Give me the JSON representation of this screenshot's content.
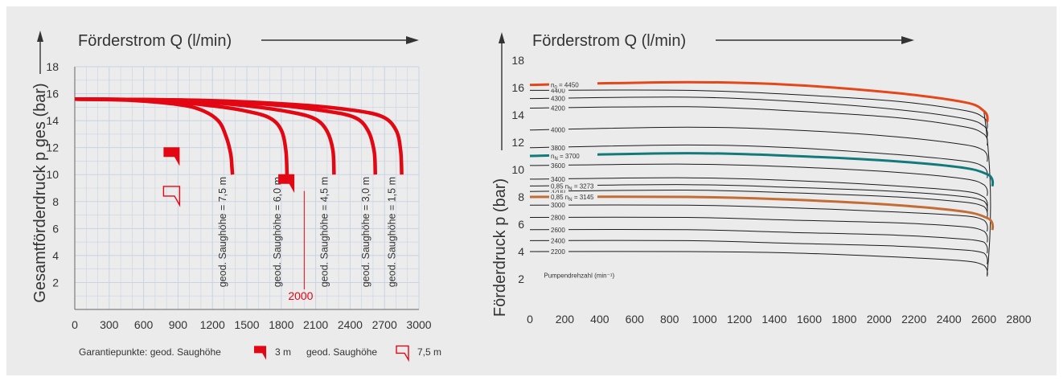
{
  "colors": {
    "background": "#ebebeb",
    "grid": "#c9d3e3",
    "red": "#e30613",
    "orange": "#e4471a",
    "teal": "#127a7a",
    "brown": "#c26d36",
    "black": "#1a1a1a"
  },
  "chart_data": [
    {
      "type": "line",
      "title": "Förderstrom Q (l/min)",
      "xlabel": "Förderstrom Q (l/min)",
      "ylabel": "Gesamtförderdruck p ges (bar)",
      "xlim": [
        0,
        3000
      ],
      "ylim": [
        0,
        18
      ],
      "x_ticks": [
        0,
        300,
        600,
        900,
        1200,
        1500,
        1800,
        2100,
        2400,
        2700,
        3000
      ],
      "y_ticks": [
        2,
        4,
        6,
        8,
        10,
        12,
        14,
        16,
        18
      ],
      "grid": true,
      "series": [
        {
          "name": "geod. Saughöhe = 7,5 m",
          "x": [
            0,
            500,
            900,
            1100,
            1250,
            1320,
            1360,
            1370,
            1375
          ],
          "y": [
            15.6,
            15.5,
            15.2,
            14.8,
            14.0,
            12.8,
            11.5,
            10.5,
            10.0
          ]
        },
        {
          "name": "geod. Saughöhe = 6,0 m",
          "x": [
            0,
            700,
            1200,
            1500,
            1700,
            1800,
            1840,
            1850
          ],
          "y": [
            15.6,
            15.5,
            15.1,
            14.7,
            14.2,
            13.3,
            11.8,
            10.0
          ]
        },
        {
          "name": "geod. Saughöhe = 4,5 m",
          "x": [
            0,
            900,
            1500,
            1900,
            2100,
            2200,
            2250,
            2260
          ],
          "y": [
            15.6,
            15.5,
            15.1,
            14.6,
            14.1,
            13.2,
            11.8,
            10.0
          ]
        },
        {
          "name": "geod. Saughöhe = 3,0 m",
          "x": [
            0,
            1000,
            1700,
            2200,
            2450,
            2560,
            2610,
            2620
          ],
          "y": [
            15.6,
            15.5,
            15.2,
            14.7,
            14.2,
            13.2,
            11.7,
            10.0
          ]
        },
        {
          "name": "geod. Saughöhe = 1,5 m",
          "x": [
            0,
            1100,
            1900,
            2400,
            2680,
            2800,
            2840,
            2850
          ],
          "y": [
            15.6,
            15.5,
            15.2,
            14.8,
            14.3,
            13.3,
            11.8,
            10.0
          ]
        }
      ],
      "guarantee_points": [
        {
          "x": 900,
          "y": 11.5,
          "style": "filled"
        },
        {
          "x": 900,
          "y": 8.6,
          "style": "outline"
        },
        {
          "x": 1900,
          "y": 9.5,
          "style": "filled"
        }
      ],
      "annotations": [
        "2000"
      ],
      "legend_text": {
        "prefix": "Garantiepunkte: geod. Saughöhe",
        "filled_value": "3 m",
        "outline_label": "geod. Saughöhe",
        "outline_value": "7,5 m"
      }
    },
    {
      "type": "line",
      "title": "Förderstrom Q (l/min)",
      "xlabel": "Förderstrom Q (l/min)",
      "ylabel": "Förderdruck p (bar)",
      "xlim": [
        0,
        2800
      ],
      "ylim": [
        0,
        18
      ],
      "x_ticks": [
        0,
        200,
        400,
        600,
        800,
        1000,
        1200,
        1400,
        1600,
        1800,
        2000,
        2200,
        2400,
        2600,
        2800
      ],
      "y_ticks": [
        2,
        4,
        6,
        8,
        10,
        12,
        14,
        16,
        18
      ],
      "grid": false,
      "speed_axis_label": "Pumpendrehzahl (min⁻¹)",
      "series": [
        {
          "name": "n0 = 4450",
          "label": "n",
          "sub": "0",
          "suffix": " = 4450",
          "x": [
            0,
            900,
            1500,
            2100,
            2500,
            2600
          ],
          "y": [
            16.2,
            16.4,
            16.2,
            15.6,
            14.9,
            14.3
          ],
          "color": "orange",
          "width": 3
        },
        {
          "name": "4400",
          "label": "4400",
          "x": [
            0,
            900,
            1500,
            2100,
            2500,
            2600
          ],
          "y": [
            15.8,
            15.8,
            15.5,
            15.0,
            14.3,
            13.8
          ],
          "color": "black",
          "width": 1
        },
        {
          "name": "4300",
          "label": "4300",
          "x": [
            0,
            900,
            1500,
            2100,
            2500,
            2600
          ],
          "y": [
            15.2,
            15.3,
            15.0,
            14.4,
            13.7,
            13.2
          ],
          "color": "black",
          "width": 1
        },
        {
          "name": "4200",
          "label": "4200",
          "x": [
            0,
            900,
            1500,
            2100,
            2500,
            2600
          ],
          "y": [
            14.5,
            14.6,
            14.3,
            13.8,
            13.1,
            12.6
          ],
          "color": "black",
          "width": 1
        },
        {
          "name": "4000",
          "label": "4000",
          "x": [
            0,
            900,
            1500,
            2100,
            2500,
            2600
          ],
          "y": [
            12.9,
            13.1,
            12.9,
            12.4,
            11.8,
            11.4
          ],
          "color": "black",
          "width": 1
        },
        {
          "name": "3800",
          "label": "3800",
          "x": [
            0,
            900,
            1500,
            2100,
            2500,
            2600
          ],
          "y": [
            11.6,
            11.8,
            11.6,
            11.1,
            10.6,
            10.2
          ],
          "color": "black",
          "width": 1
        },
        {
          "name": "nN = 3700",
          "label": "n",
          "sub": "N",
          "suffix": " = 3700",
          "x": [
            0,
            900,
            1500,
            2100,
            2500,
            2630
          ],
          "y": [
            11.0,
            11.2,
            11.0,
            10.6,
            10.1,
            9.6
          ],
          "color": "teal",
          "width": 3
        },
        {
          "name": "3600",
          "label": "3600",
          "x": [
            0,
            900,
            1500,
            2100,
            2500,
            2600
          ],
          "y": [
            10.3,
            10.4,
            10.2,
            9.8,
            9.3,
            8.9
          ],
          "color": "black",
          "width": 1
        },
        {
          "name": "3400",
          "label": "3400",
          "x": [
            0,
            900,
            1500,
            2100,
            2500,
            2600
          ],
          "y": [
            9.3,
            9.4,
            9.2,
            8.8,
            8.4,
            8.0
          ],
          "color": "black",
          "width": 1
        },
        {
          "name": "3200",
          "label": "3200",
          "x": [
            0,
            900,
            1500,
            2100,
            2500,
            2600
          ],
          "y": [
            8.4,
            8.5,
            8.3,
            8.0,
            7.6,
            7.3
          ],
          "color": "black",
          "width": 1
        },
        {
          "name": "0,85 nN = 3273",
          "label": "0,85 n",
          "sub": "N",
          "suffix": " = 3273",
          "x": [
            0,
            900,
            1500,
            2100,
            2500,
            2600
          ],
          "y": [
            8.8,
            8.9,
            8.7,
            8.4,
            8.0,
            7.7
          ],
          "color": "black",
          "width": 1
        },
        {
          "name": "0,85 nN = 3145",
          "label": "0,85 n",
          "sub": "N",
          "suffix": " = 3145",
          "x": [
            0,
            900,
            1500,
            2100,
            2500,
            2630
          ],
          "y": [
            8.0,
            8.0,
            7.8,
            7.4,
            6.9,
            6.4
          ],
          "color": "brown",
          "width": 3
        },
        {
          "name": "3000",
          "label": "3000",
          "x": [
            0,
            900,
            1500,
            2100,
            2500,
            2600
          ],
          "y": [
            7.4,
            7.4,
            7.2,
            6.9,
            6.6,
            6.3
          ],
          "color": "black",
          "width": 1
        },
        {
          "name": "2800",
          "label": "2800",
          "x": [
            0,
            900,
            1500,
            2100,
            2500,
            2600
          ],
          "y": [
            6.5,
            6.5,
            6.3,
            6.1,
            5.8,
            5.5
          ],
          "color": "black",
          "width": 1
        },
        {
          "name": "2600",
          "label": "2600",
          "x": [
            0,
            900,
            1500,
            2100,
            2500,
            2600
          ],
          "y": [
            5.6,
            5.6,
            5.4,
            5.2,
            4.9,
            4.7
          ],
          "color": "black",
          "width": 1
        },
        {
          "name": "2400",
          "label": "2400",
          "x": [
            0,
            900,
            1500,
            2100,
            2500,
            2600
          ],
          "y": [
            4.8,
            4.8,
            4.6,
            4.4,
            4.1,
            3.9
          ],
          "color": "black",
          "width": 1
        },
        {
          "name": "2200",
          "label": "2200",
          "x": [
            0,
            900,
            1500,
            2100,
            2500,
            2600
          ],
          "y": [
            4.0,
            4.0,
            3.9,
            3.6,
            3.3,
            3.0
          ],
          "color": "black",
          "width": 1
        }
      ]
    }
  ]
}
